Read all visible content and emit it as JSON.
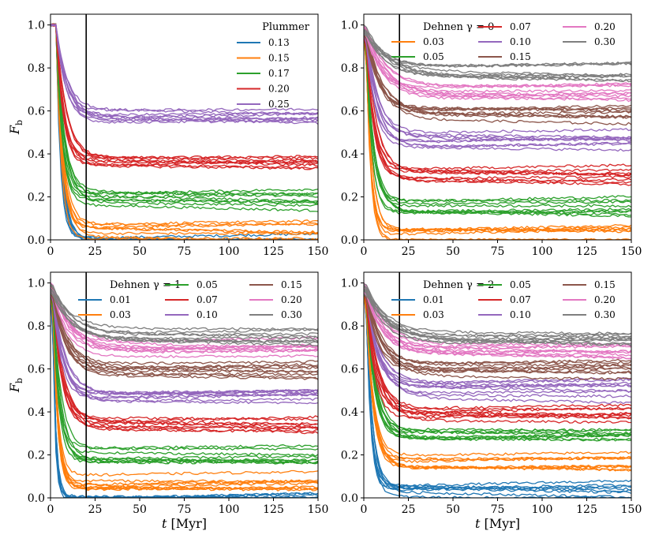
{
  "figure": {
    "xlabel": "t [Myr]",
    "ylabel": "F_b",
    "vline_x": 20,
    "xlim": [
      0,
      150
    ],
    "ylim": [
      0,
      1.05
    ],
    "xticks": [
      0,
      25,
      50,
      75,
      100,
      125,
      150
    ],
    "yticks": [
      0.0,
      0.2,
      0.4,
      0.6,
      0.8,
      1.0
    ]
  },
  "colors": {
    "0.01": "#1f77b4",
    "0.13": "#1f77b4",
    "0.03": "#ff7f0e",
    "0.15": "#ff7f0e",
    "0.05": "#2ca02c",
    "0.17": "#2ca02c",
    "0.07": "#d62728",
    "0.20d": "#d62728",
    "0.10": "#9467bd",
    "0.25": "#9467bd",
    "0.15d": "#8c564b",
    "0.20": "#e377c2",
    "0.30": "#7f7f7f",
    "vline": "#000000"
  },
  "chart_data": [
    {
      "type": "line",
      "panel": "top-left",
      "legend_title": "Plummer",
      "legend_position": "top-right",
      "series": [
        {
          "name": "0.13",
          "color": "#1f77b4",
          "plateau": 0.0,
          "tau": 3.0,
          "count": 6
        },
        {
          "name": "0.15",
          "color": "#ff7f0e",
          "plateau": 0.04,
          "tau": 3.5,
          "count": 8
        },
        {
          "name": "0.17",
          "color": "#2ca02c",
          "plateau": 0.2,
          "tau": 4.0,
          "count": 9
        },
        {
          "name": "0.20",
          "color": "#d62728",
          "plateau": 0.35,
          "tau": 5.0,
          "count": 9
        },
        {
          "name": "0.25",
          "color": "#9467bd",
          "plateau": 0.58,
          "tau": 6.0,
          "count": 9
        }
      ],
      "x": [
        0,
        3,
        6,
        10,
        15,
        20,
        30,
        50,
        75,
        100,
        125,
        150
      ],
      "representative": {
        "0.13": [
          1.0,
          1.0,
          0.55,
          0.12,
          0.02,
          0.0,
          0.0,
          0.0,
          0.0,
          0.0,
          0.0,
          0.0
        ],
        "0.15": [
          1.0,
          1.0,
          0.6,
          0.25,
          0.08,
          0.05,
          0.04,
          0.04,
          0.05,
          0.04,
          0.04,
          0.04
        ],
        "0.17": [
          1.0,
          1.0,
          0.7,
          0.38,
          0.26,
          0.22,
          0.21,
          0.2,
          0.2,
          0.19,
          0.19,
          0.19
        ],
        "0.20": [
          1.0,
          1.0,
          0.8,
          0.55,
          0.42,
          0.38,
          0.36,
          0.35,
          0.36,
          0.34,
          0.34,
          0.34
        ],
        "0.25": [
          1.0,
          1.0,
          0.92,
          0.78,
          0.66,
          0.62,
          0.6,
          0.59,
          0.59,
          0.58,
          0.57,
          0.57
        ]
      },
      "xlabel": "",
      "ylabel": "F_b"
    },
    {
      "type": "line",
      "panel": "top-right",
      "legend_title": "Dehnen γ = 0",
      "legend_position": "top-right",
      "series": [
        {
          "name": "0.03",
          "color": "#ff7f0e",
          "plateau": 0.02,
          "tau": 3.0,
          "count": 8
        },
        {
          "name": "0.05",
          "color": "#2ca02c",
          "plateau": 0.15,
          "tau": 4.0,
          "count": 9
        },
        {
          "name": "0.07",
          "color": "#d62728",
          "plateau": 0.3,
          "tau": 5.0,
          "count": 9
        },
        {
          "name": "0.10",
          "color": "#9467bd",
          "plateau": 0.46,
          "tau": 6.0,
          "count": 9
        },
        {
          "name": "0.15",
          "color": "#8c564b",
          "plateau": 0.6,
          "tau": 8.0,
          "count": 9
        },
        {
          "name": "0.20",
          "color": "#e377c2",
          "plateau": 0.68,
          "tau": 10.0,
          "count": 9
        },
        {
          "name": "0.30",
          "color": "#7f7f7f",
          "plateau": 0.77,
          "tau": 12.0,
          "count": 9
        }
      ],
      "x": [
        0,
        3,
        6,
        10,
        15,
        20,
        30,
        50,
        75,
        100,
        125,
        150
      ],
      "xlabel": "",
      "ylabel": ""
    },
    {
      "type": "line",
      "panel": "bottom-left",
      "legend_title": "Dehnen γ = 1",
      "legend_position": "top-right",
      "series": [
        {
          "name": "0.01",
          "color": "#1f77b4",
          "plateau": 0.0,
          "tau": 1.5,
          "count": 6
        },
        {
          "name": "0.03",
          "color": "#ff7f0e",
          "plateau": 0.07,
          "tau": 3.0,
          "count": 9
        },
        {
          "name": "0.05",
          "color": "#2ca02c",
          "plateau": 0.2,
          "tau": 4.0,
          "count": 9
        },
        {
          "name": "0.07",
          "color": "#d62728",
          "plateau": 0.34,
          "tau": 5.0,
          "count": 9
        },
        {
          "name": "0.10",
          "color": "#9467bd",
          "plateau": 0.48,
          "tau": 6.0,
          "count": 9
        },
        {
          "name": "0.15",
          "color": "#8c564b",
          "plateau": 0.6,
          "tau": 8.0,
          "count": 9
        },
        {
          "name": "0.20",
          "color": "#e377c2",
          "plateau": 0.69,
          "tau": 10.0,
          "count": 9
        },
        {
          "name": "0.30",
          "color": "#7f7f7f",
          "plateau": 0.76,
          "tau": 12.0,
          "count": 9
        }
      ],
      "x": [
        0,
        3,
        6,
        10,
        15,
        20,
        30,
        50,
        75,
        100,
        125,
        150
      ],
      "xlabel": "t [Myr]",
      "ylabel": "F_b"
    },
    {
      "type": "line",
      "panel": "bottom-right",
      "legend_title": "Dehnen γ = 2",
      "legend_position": "top-right",
      "series": [
        {
          "name": "0.01",
          "color": "#1f77b4",
          "plateau": 0.03,
          "tau": 3.0,
          "count": 8
        },
        {
          "name": "0.03",
          "color": "#ff7f0e",
          "plateau": 0.17,
          "tau": 4.0,
          "count": 9
        },
        {
          "name": "0.05",
          "color": "#2ca02c",
          "plateau": 0.3,
          "tau": 5.0,
          "count": 9
        },
        {
          "name": "0.07",
          "color": "#d62728",
          "plateau": 0.39,
          "tau": 6.0,
          "count": 9
        },
        {
          "name": "0.10",
          "color": "#9467bd",
          "plateau": 0.5,
          "tau": 7.0,
          "count": 9
        },
        {
          "name": "0.15",
          "color": "#8c564b",
          "plateau": 0.6,
          "tau": 8.0,
          "count": 9
        },
        {
          "name": "0.20",
          "color": "#e377c2",
          "plateau": 0.68,
          "tau": 10.0,
          "count": 9
        },
        {
          "name": "0.30",
          "color": "#7f7f7f",
          "plateau": 0.74,
          "tau": 12.0,
          "count": 9
        }
      ],
      "x": [
        0,
        3,
        6,
        10,
        15,
        20,
        30,
        50,
        75,
        100,
        125,
        150
      ],
      "xlabel": "t [Myr]",
      "ylabel": ""
    }
  ]
}
